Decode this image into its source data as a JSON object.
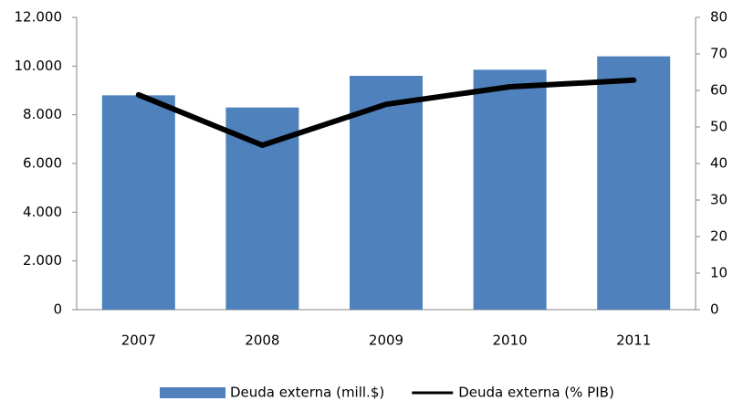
{
  "chart_data": {
    "type": "bar-line",
    "categories": [
      "2007",
      "2008",
      "2009",
      "2010",
      "2011"
    ],
    "series": [
      {
        "name": "Deuda externa (mill.$)",
        "type": "bar",
        "color": "#4f81bd",
        "values": [
          8800,
          8300,
          9600,
          9850,
          10400
        ]
      },
      {
        "name": "Deuda externa (% PIB)",
        "type": "line",
        "axis": "y2",
        "color": "#000000",
        "values": [
          58.8,
          45,
          56.2,
          61,
          62.8
        ]
      }
    ],
    "ylim": [
      0,
      12000
    ],
    "yticks": [
      0,
      {
        "value": 2000,
        "label": "2.000"
      },
      {
        "value": 4000,
        "label": "4.000"
      },
      {
        "value": 6000,
        "label": "6.000"
      },
      {
        "value": 8000,
        "label": "8.000"
      },
      {
        "value": 10000,
        "label": "10.000"
      },
      {
        "value": 12000,
        "label": "12.000"
      }
    ],
    "y2lim": [
      0,
      80
    ],
    "y2ticks": [
      0,
      10,
      20,
      30,
      40,
      50,
      60,
      70,
      80
    ],
    "grid": false,
    "legend": "bottom"
  }
}
